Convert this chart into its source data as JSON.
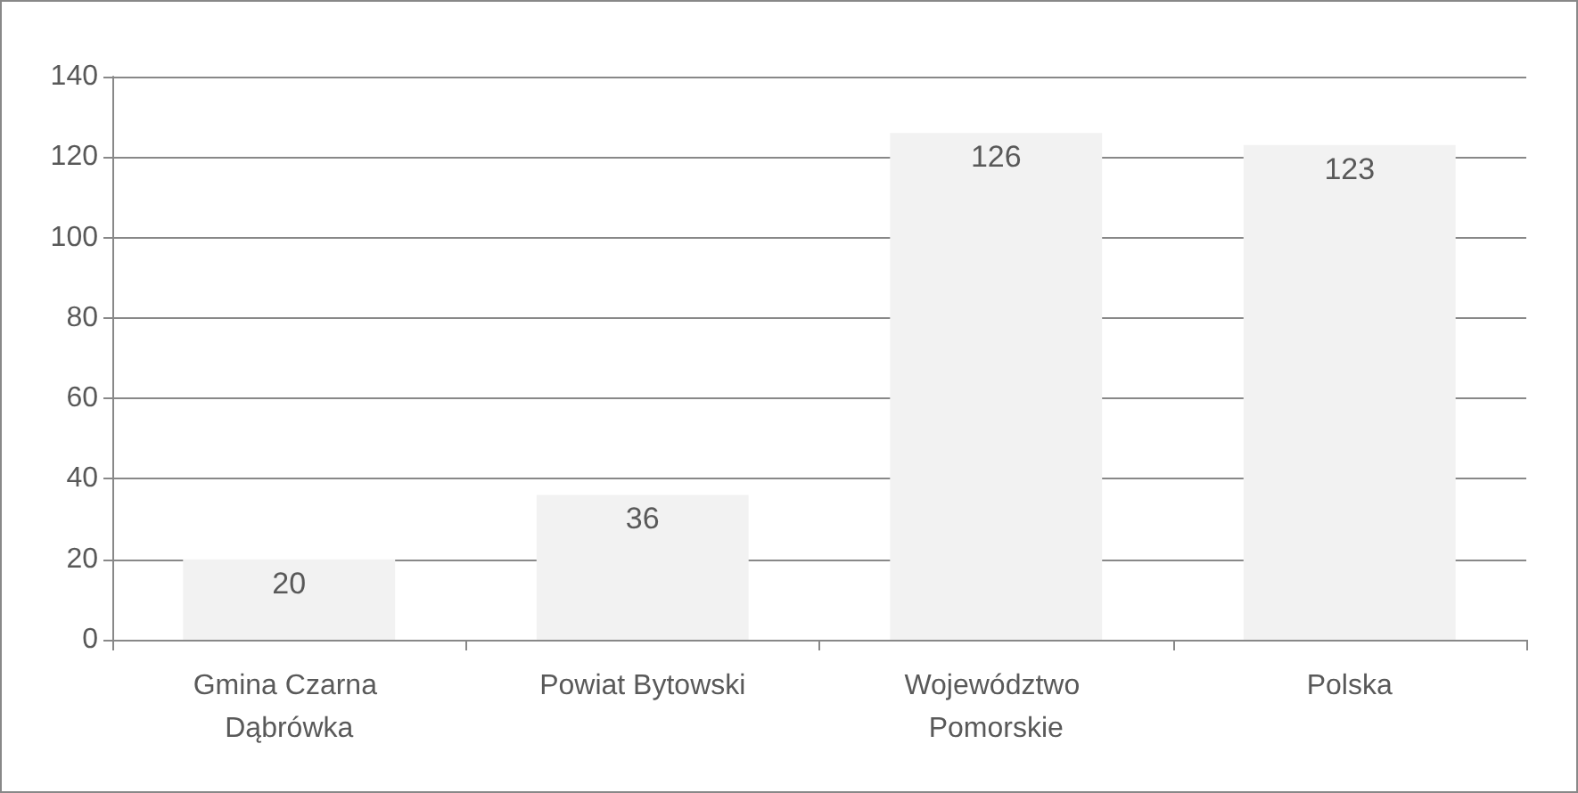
{
  "chart_data": {
    "type": "bar",
    "categories": [
      "Gmina Czarna Dąbrówka",
      "Powiat Bytowski",
      "Województwo Pomorskie",
      "Polska"
    ],
    "values": [
      20,
      36,
      126,
      123
    ],
    "color": "#f2f2f2",
    "ylim": [
      0,
      140
    ],
    "yticks": [
      0,
      20,
      40,
      60,
      80,
      100,
      120,
      140
    ],
    "grid": "y",
    "data_labels": true
  }
}
